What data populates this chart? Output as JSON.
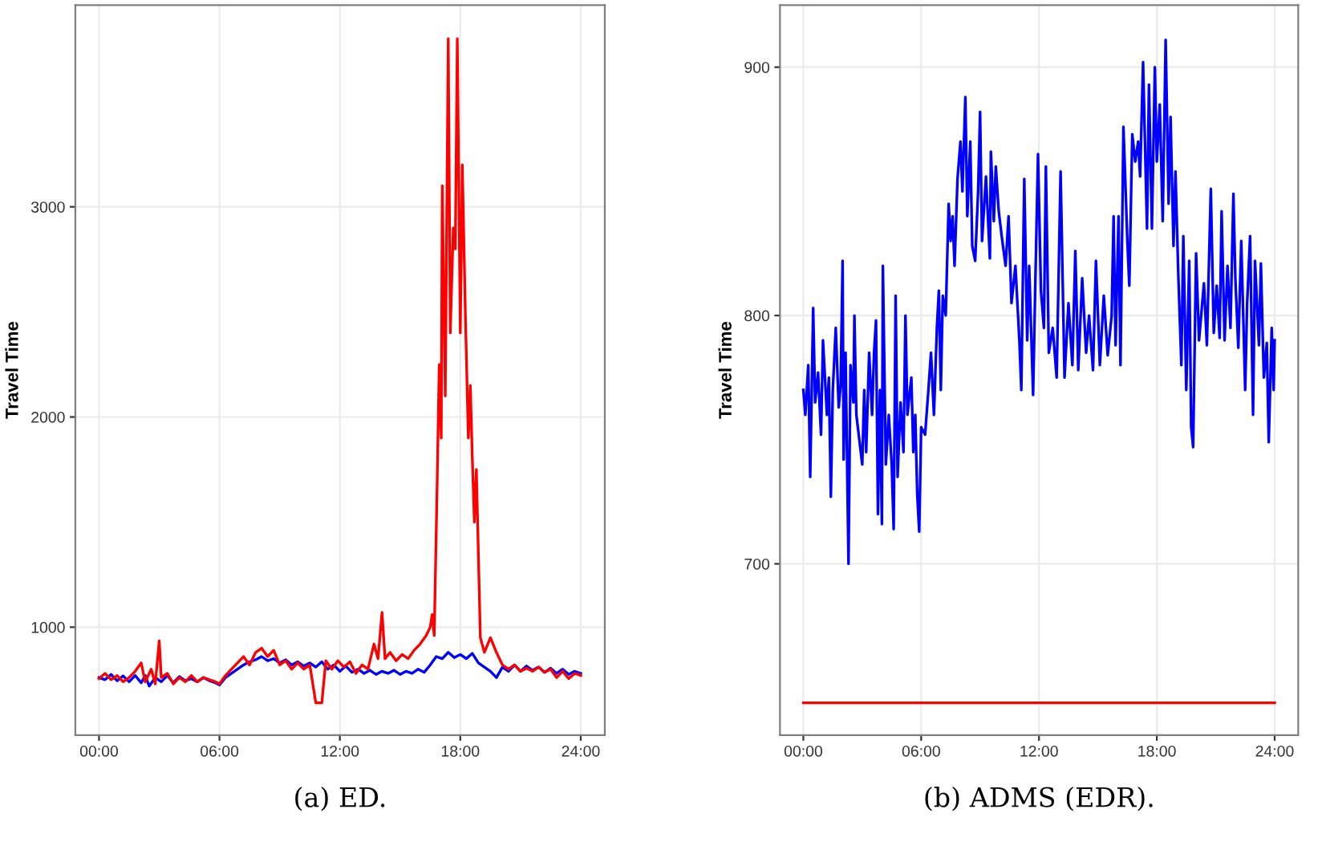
{
  "chart_data": [
    {
      "type": "line",
      "ylabel": "Travel Time",
      "annotations": [
        "(a) ED."
      ],
      "grid": true,
      "legend": false,
      "xlim": [
        -1.18,
        25.2
      ],
      "xticks": [
        {
          "value": 0,
          "label": "00:00"
        },
        {
          "value": 6,
          "label": "06:00"
        },
        {
          "value": 12,
          "label": "12:00"
        },
        {
          "value": 18,
          "label": "18:00"
        },
        {
          "value": 24,
          "label": "24:00"
        }
      ],
      "ylim": [
        486,
        3960
      ],
      "yticks": [
        1000,
        2000,
        3000
      ],
      "series": [
        {
          "color": "#0000ff",
          "x": [
            0,
            0.3,
            0.6,
            0.9,
            1.2,
            1.5,
            1.8,
            2.1,
            2.3,
            2.5,
            2.8,
            3.1,
            3.4,
            3.7,
            4.0,
            4.3,
            4.6,
            4.9,
            5.2,
            5.5,
            5.8,
            6.0,
            6.3,
            6.6,
            6.9,
            7.2,
            7.5,
            7.8,
            8.1,
            8.4,
            8.7,
            9.0,
            9.3,
            9.6,
            9.9,
            10.2,
            10.5,
            10.8,
            11.1,
            11.4,
            11.7,
            12.0,
            12.3,
            12.6,
            12.9,
            13.2,
            13.5,
            13.8,
            14.1,
            14.4,
            14.7,
            15.0,
            15.3,
            15.6,
            15.9,
            16.2,
            16.5,
            16.8,
            17.1,
            17.4,
            17.7,
            18.0,
            18.3,
            18.6,
            18.9,
            19.2,
            19.5,
            19.8,
            20.1,
            20.4,
            20.7,
            21.0,
            21.3,
            21.6,
            21.9,
            22.2,
            22.5,
            22.8,
            23.1,
            23.4,
            23.7,
            24.0
          ],
          "values": [
            760,
            750,
            775,
            745,
            768,
            740,
            770,
            735,
            770,
            720,
            760,
            740,
            770,
            735,
            765,
            745,
            755,
            740,
            760,
            745,
            735,
            725,
            760,
            780,
            800,
            820,
            835,
            845,
            860,
            840,
            850,
            830,
            845,
            820,
            835,
            815,
            830,
            810,
            835,
            800,
            820,
            790,
            815,
            785,
            800,
            780,
            795,
            775,
            790,
            780,
            795,
            775,
            790,
            780,
            800,
            785,
            820,
            860,
            850,
            880,
            855,
            870,
            850,
            875,
            830,
            810,
            790,
            760,
            810,
            790,
            820,
            790,
            815,
            795,
            810,
            785,
            805,
            780,
            800,
            775,
            790,
            780
          ]
        },
        {
          "color": "#ff0000",
          "x": [
            0,
            0.3,
            0.6,
            0.9,
            1.2,
            1.5,
            1.8,
            2.1,
            2.3,
            2.6,
            2.8,
            3.0,
            3.1,
            3.4,
            3.7,
            4.0,
            4.3,
            4.6,
            4.9,
            5.2,
            5.5,
            5.8,
            6.0,
            6.3,
            6.6,
            6.9,
            7.2,
            7.5,
            7.8,
            8.1,
            8.4,
            8.7,
            9.0,
            9.3,
            9.6,
            9.9,
            10.2,
            10.5,
            10.8,
            11.1,
            11.3,
            11.6,
            11.9,
            12.2,
            12.5,
            12.8,
            13.1,
            13.4,
            13.7,
            13.9,
            14.1,
            14.25,
            14.5,
            14.8,
            15.1,
            15.4,
            15.7,
            16.0,
            16.3,
            16.5,
            16.6,
            16.7,
            16.85,
            16.95,
            17.05,
            17.1,
            17.25,
            17.4,
            17.5,
            17.65,
            17.75,
            17.85,
            18.0,
            18.1,
            18.25,
            18.4,
            18.5,
            18.6,
            18.7,
            18.8,
            19.0,
            19.2,
            19.5,
            19.8,
            20.1,
            20.4,
            20.7,
            21.0,
            21.3,
            21.6,
            21.9,
            22.2,
            22.5,
            22.8,
            23.1,
            23.4,
            23.7,
            24.0
          ],
          "values": [
            755,
            780,
            750,
            770,
            740,
            760,
            790,
            830,
            740,
            800,
            730,
            935,
            760,
            780,
            730,
            760,
            740,
            770,
            740,
            760,
            750,
            740,
            730,
            770,
            800,
            830,
            860,
            820,
            880,
            900,
            860,
            890,
            820,
            840,
            800,
            830,
            800,
            820,
            640,
            640,
            840,
            800,
            840,
            810,
            835,
            780,
            820,
            800,
            920,
            850,
            1070,
            850,
            880,
            840,
            870,
            850,
            890,
            920,
            960,
            1000,
            1060,
            960,
            1700,
            2250,
            1900,
            3100,
            2100,
            3800,
            2400,
            2900,
            2800,
            3800,
            2400,
            3200,
            2500,
            1900,
            2150,
            1800,
            1500,
            1750,
            950,
            880,
            950,
            880,
            820,
            800,
            820,
            790,
            805,
            790,
            810,
            785,
            800,
            760,
            790,
            755,
            780,
            770
          ]
        }
      ]
    },
    {
      "type": "line",
      "ylabel": "Travel Time",
      "annotations": [
        "(b) ADMS (EDR)."
      ],
      "grid": true,
      "legend": false,
      "xlim": [
        -1.19,
        25.2
      ],
      "xticks": [
        {
          "value": 0,
          "label": "00:00"
        },
        {
          "value": 6,
          "label": "06:00"
        },
        {
          "value": 12,
          "label": "12:00"
        },
        {
          "value": 18,
          "label": "18:00"
        },
        {
          "value": 24,
          "label": "24:00"
        }
      ],
      "ylim": [
        631,
        925
      ],
      "yticks": [
        700,
        800,
        900
      ],
      "series": [
        {
          "color": "#0000ff",
          "x": [
            0.0,
            0.1,
            0.25,
            0.35,
            0.5,
            0.6,
            0.75,
            0.9,
            1.0,
            1.2,
            1.3,
            1.4,
            1.5,
            1.65,
            1.8,
            1.9,
            2.0,
            2.05,
            2.15,
            2.3,
            2.4,
            2.55,
            2.6,
            2.7,
            2.85,
            3.0,
            3.1,
            3.2,
            3.35,
            3.5,
            3.6,
            3.7,
            3.8,
            3.9,
            4.0,
            4.05,
            4.2,
            4.35,
            4.5,
            4.6,
            4.7,
            4.8,
            4.95,
            5.1,
            5.2,
            5.3,
            5.5,
            5.6,
            5.7,
            5.8,
            5.9,
            6.0,
            6.2,
            6.35,
            6.5,
            6.65,
            6.8,
            6.9,
            7.0,
            7.1,
            7.25,
            7.4,
            7.5,
            7.6,
            7.7,
            7.85,
            8.0,
            8.1,
            8.25,
            8.35,
            8.5,
            8.6,
            8.75,
            8.9,
            9.0,
            9.1,
            9.3,
            9.5,
            9.55,
            9.7,
            9.8,
            9.95,
            10.1,
            10.3,
            10.45,
            10.6,
            10.8,
            11.0,
            11.1,
            11.25,
            11.4,
            11.5,
            11.7,
            11.8,
            11.95,
            12.1,
            12.25,
            12.35,
            12.5,
            12.7,
            12.9,
            13.1,
            13.3,
            13.5,
            13.7,
            13.85,
            14.0,
            14.2,
            14.4,
            14.55,
            14.75,
            14.9,
            15.1,
            15.3,
            15.5,
            15.7,
            15.8,
            15.9,
            16.05,
            16.15,
            16.3,
            16.5,
            16.6,
            16.75,
            16.9,
            17.05,
            17.15,
            17.3,
            17.5,
            17.6,
            17.75,
            17.9,
            18.0,
            18.15,
            18.3,
            18.45,
            18.6,
            18.7,
            18.85,
            18.95,
            19.1,
            19.25,
            19.35,
            19.5,
            19.65,
            19.75,
            19.85,
            20.0,
            20.15,
            20.4,
            20.55,
            20.75,
            20.9,
            21.05,
            21.2,
            21.3,
            21.45,
            21.6,
            21.75,
            21.9,
            22.0,
            22.15,
            22.3,
            22.5,
            22.6,
            22.75,
            22.9,
            23.0,
            23.2,
            23.3,
            23.45,
            23.6,
            23.7,
            23.85,
            23.95,
            24.0
          ],
          "values": [
            770,
            760,
            780,
            735,
            803,
            765,
            777,
            752,
            790,
            760,
            775,
            727,
            770,
            795,
            763,
            772,
            822,
            742,
            785,
            700,
            780,
            765,
            800,
            760,
            750,
            740,
            770,
            745,
            785,
            760,
            785,
            798,
            720,
            770,
            716,
            820,
            740,
            760,
            740,
            714,
            808,
            735,
            765,
            745,
            800,
            760,
            775,
            745,
            760,
            728,
            713,
            755,
            752,
            768,
            785,
            760,
            795,
            810,
            770,
            808,
            800,
            845,
            830,
            840,
            820,
            855,
            870,
            850,
            888,
            840,
            870,
            828,
            822,
            850,
            882,
            830,
            856,
            823,
            866,
            838,
            860,
            842,
            832,
            820,
            840,
            805,
            820,
            790,
            770,
            855,
            790,
            820,
            768,
            808,
            865,
            810,
            795,
            860,
            785,
            795,
            775,
            858,
            775,
            805,
            780,
            826,
            778,
            815,
            785,
            800,
            778,
            822,
            780,
            808,
            784,
            800,
            840,
            788,
            840,
            780,
            876,
            830,
            812,
            873,
            862,
            870,
            856,
            902,
            835,
            893,
            835,
            900,
            862,
            885,
            838,
            911,
            845,
            880,
            828,
            858,
            815,
            780,
            832,
            770,
            822,
            755,
            747,
            825,
            790,
            813,
            788,
            851,
            793,
            812,
            791,
            842,
            790,
            820,
            795,
            849,
            815,
            787,
            830,
            770,
            805,
            832,
            760,
            822,
            788,
            821,
            775,
            789,
            749,
            795,
            770,
            790
          ]
        },
        {
          "color": "#ff0000",
          "x": [
            0,
            24
          ],
          "values": [
            644,
            644
          ]
        }
      ]
    }
  ]
}
